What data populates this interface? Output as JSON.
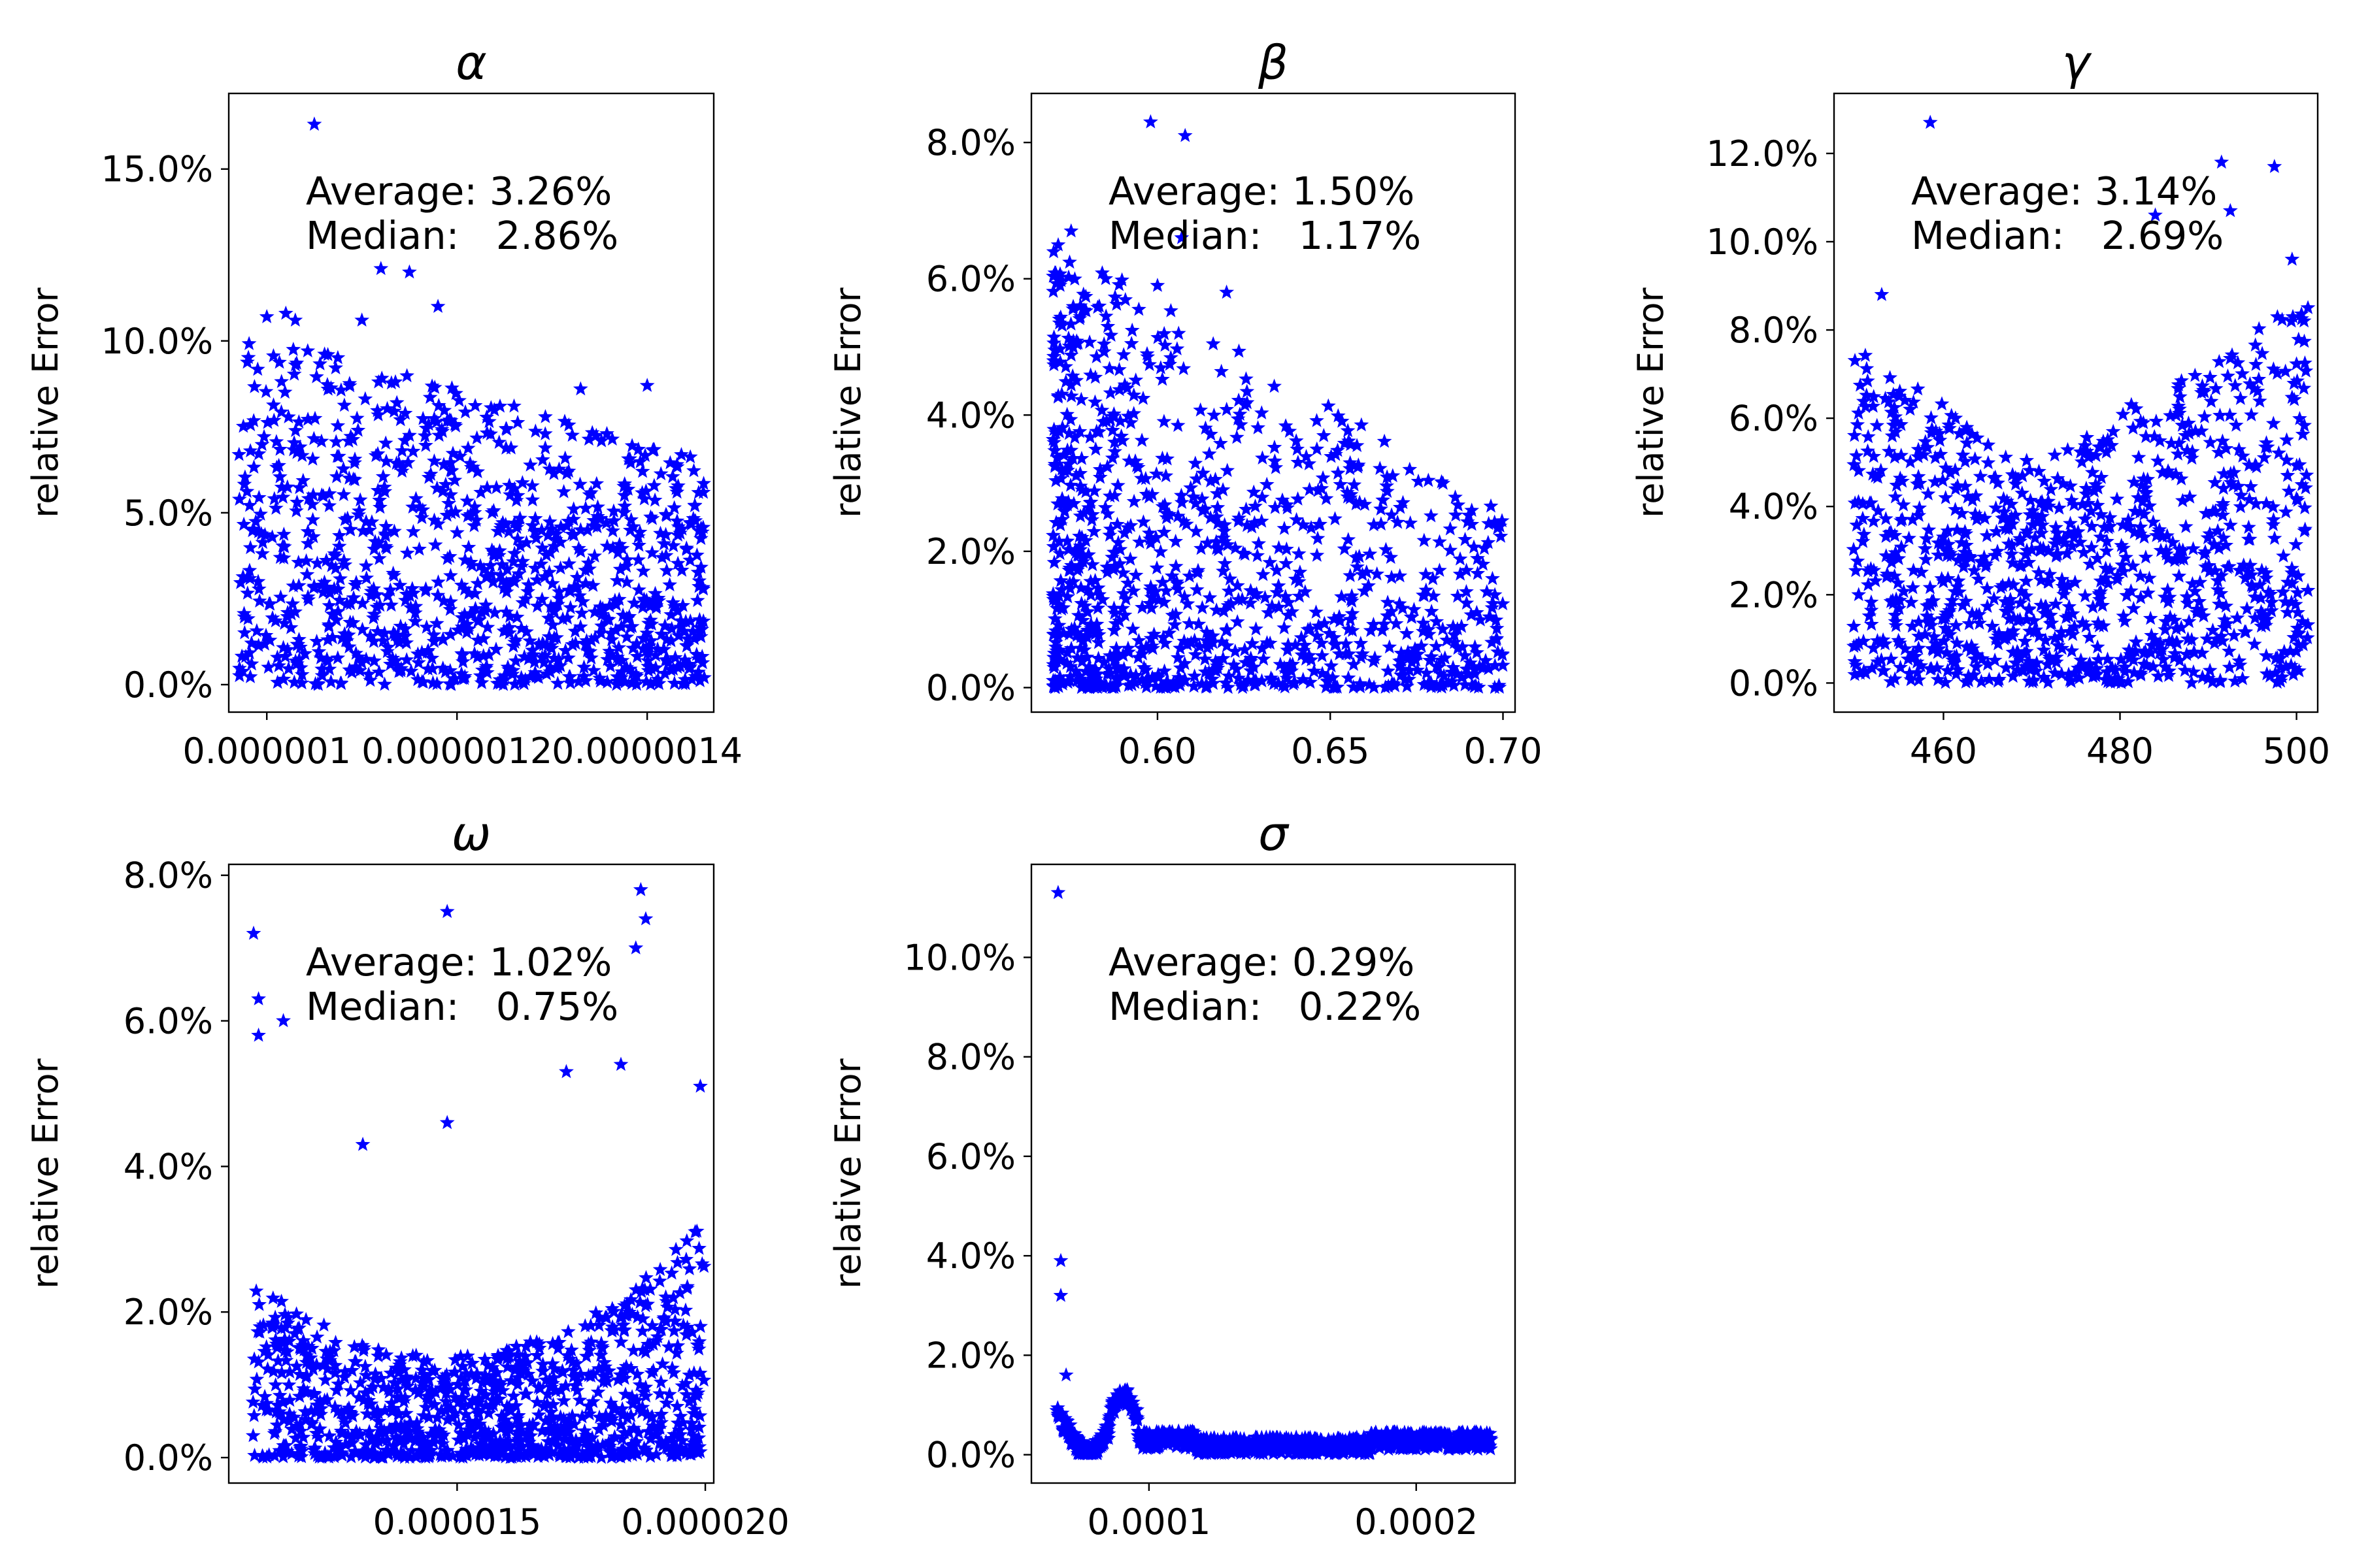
{
  "chart_data": [
    {
      "type": "scatter",
      "title": "α",
      "ylabel": "relative Error",
      "xlim": [
        9.6e-07,
        1.47e-06
      ],
      "ylim": [
        -0.008,
        0.172
      ],
      "x_ticks": [
        {
          "value": 1e-06,
          "label": "0.000001"
        },
        {
          "value": 1.2e-06,
          "label": "0.0000012"
        },
        {
          "value": 1.4e-06,
          "label": "0.0000014"
        }
      ],
      "y_ticks": [
        {
          "value": 0.0,
          "label": "0.0%"
        },
        {
          "value": 0.05,
          "label": "5.0%"
        },
        {
          "value": 0.1,
          "label": "10.0%"
        },
        {
          "value": 0.15,
          "label": "15.0%"
        }
      ],
      "stats": {
        "average": "Average: 3.26%",
        "median": "Median:   2.86%"
      },
      "n_points": 1000,
      "marker": "*",
      "color": "#0000ff",
      "points": [
        [
          1.05e-06,
          0.163
        ],
        [
          1.12e-06,
          0.121
        ],
        [
          1.15e-06,
          0.12
        ],
        [
          1.18e-06,
          0.11
        ],
        [
          1e-06,
          0.107
        ],
        [
          1.03e-06,
          0.106
        ],
        [
          1.02e-06,
          0.108
        ],
        [
          1.1e-06,
          0.106
        ],
        [
          1.4e-06,
          0.087
        ],
        [
          1.33e-06,
          0.086
        ],
        [
          1.26e-06,
          0.081
        ],
        [
          1.45e-06,
          0.052
        ],
        [
          1.46e-06,
          0.002
        ]
      ],
      "grid": false
    },
    {
      "type": "scatter",
      "title": "β",
      "ylabel": "relative Error",
      "xlim": [
        0.5635,
        0.7035
      ],
      "ylim": [
        -0.0036,
        0.0872
      ],
      "x_ticks": [
        {
          "value": 0.6,
          "label": "0.60"
        },
        {
          "value": 0.65,
          "label": "0.65"
        },
        {
          "value": 0.7,
          "label": "0.70"
        }
      ],
      "y_ticks": [
        {
          "value": 0.0,
          "label": "0.0%"
        },
        {
          "value": 0.02,
          "label": "2.0%"
        },
        {
          "value": 0.04,
          "label": "4.0%"
        },
        {
          "value": 0.06,
          "label": "6.0%"
        },
        {
          "value": 0.08,
          "label": "8.0%"
        }
      ],
      "stats": {
        "average": "Average: 1.50%",
        "median": "Median:   1.17%"
      },
      "n_points": 1000,
      "marker": "*",
      "color": "#0000ff",
      "points": [
        [
          0.598,
          0.083
        ],
        [
          0.608,
          0.081
        ],
        [
          0.607,
          0.066
        ],
        [
          0.575,
          0.067
        ],
        [
          0.6,
          0.059
        ],
        [
          0.62,
          0.058
        ],
        [
          0.585,
          0.06
        ],
        [
          0.673,
          0.032
        ],
        [
          0.698,
          0.007
        ]
      ],
      "grid": false
    },
    {
      "type": "scatter",
      "title": "γ",
      "ylabel": "relative Error",
      "xlim": [
        447.6,
        502.4
      ],
      "ylim": [
        -0.0066,
        0.1336
      ],
      "x_ticks": [
        {
          "value": 460,
          "label": "460"
        },
        {
          "value": 480,
          "label": "480"
        },
        {
          "value": 500,
          "label": "500"
        }
      ],
      "y_ticks": [
        {
          "value": 0.0,
          "label": "0.0%"
        },
        {
          "value": 0.02,
          "label": "2.0%"
        },
        {
          "value": 0.04,
          "label": "4.0%"
        },
        {
          "value": 0.06,
          "label": "6.0%"
        },
        {
          "value": 0.08,
          "label": "8.0%"
        },
        {
          "value": 0.1,
          "label": "10.0%"
        },
        {
          "value": 0.12,
          "label": "12.0%"
        }
      ],
      "stats": {
        "average": "Average: 3.14%",
        "median": "Median:   2.69%"
      },
      "n_points": 1000,
      "marker": "*",
      "color": "#0000ff",
      "points": [
        [
          458.5,
          0.127
        ],
        [
          491.5,
          0.118
        ],
        [
          497.5,
          0.117
        ],
        [
          492.5,
          0.107
        ],
        [
          484,
          0.106
        ],
        [
          453,
          0.088
        ],
        [
          499.5,
          0.096
        ],
        [
          490,
          0.001
        ]
      ],
      "grid": false
    },
    {
      "type": "scatter",
      "title": "ω",
      "ylabel": "relative Error",
      "xlim": [
        1.04e-05,
        2.017e-05
      ],
      "ylim": [
        -0.0035,
        0.0815
      ],
      "x_ticks": [
        {
          "value": 1.5e-05,
          "label": "0.000015"
        },
        {
          "value": 2e-05,
          "label": "0.000020"
        }
      ],
      "y_ticks": [
        {
          "value": 0.0,
          "label": "0.0%"
        },
        {
          "value": 0.02,
          "label": "2.0%"
        },
        {
          "value": 0.04,
          "label": "4.0%"
        },
        {
          "value": 0.06,
          "label": "6.0%"
        },
        {
          "value": 0.08,
          "label": "8.0%"
        }
      ],
      "stats": {
        "average": "Average: 1.02%",
        "median": "Median:   0.75%"
      },
      "n_points": 1000,
      "marker": "*",
      "color": "#0000ff",
      "points": [
        [
          1.09e-05,
          0.072
        ],
        [
          1.1e-05,
          0.063
        ],
        [
          1.1e-05,
          0.058
        ],
        [
          1.15e-05,
          0.06
        ],
        [
          1.48e-05,
          0.075
        ],
        [
          1.87e-05,
          0.078
        ],
        [
          1.88e-05,
          0.074
        ],
        [
          1.86e-05,
          0.07
        ],
        [
          1.99e-05,
          0.051
        ],
        [
          1.31e-05,
          0.043
        ],
        [
          1.48e-05,
          0.046
        ],
        [
          1.72e-05,
          0.053
        ],
        [
          1.83e-05,
          0.054
        ]
      ],
      "grid": false
    },
    {
      "type": "scatter",
      "title": "σ",
      "ylabel": "relative Error",
      "xlim": [
        5.6e-05,
        0.000237
      ],
      "ylim": [
        -0.0057,
        0.1187
      ],
      "x_ticks": [
        {
          "value": 0.0001,
          "label": "0.0001"
        },
        {
          "value": 0.0002,
          "label": "0.0002"
        }
      ],
      "y_ticks": [
        {
          "value": 0.0,
          "label": "0.0%"
        },
        {
          "value": 0.02,
          "label": "2.0%"
        },
        {
          "value": 0.04,
          "label": "4.0%"
        },
        {
          "value": 0.06,
          "label": "6.0%"
        },
        {
          "value": 0.08,
          "label": "8.0%"
        },
        {
          "value": 0.1,
          "label": "10.0%"
        }
      ],
      "stats": {
        "average": "Average: 0.29%",
        "median": "Median:   0.22%"
      },
      "n_points": 1000,
      "marker": "*",
      "color": "#0000ff",
      "points": [
        [
          6.6e-05,
          0.113
        ],
        [
          6.7e-05,
          0.039
        ],
        [
          6.7e-05,
          0.032
        ],
        [
          6.9e-05,
          0.016
        ],
        [
          9e-05,
          0.012
        ],
        [
          0.000228,
          0.003
        ]
      ],
      "grid": false
    }
  ]
}
